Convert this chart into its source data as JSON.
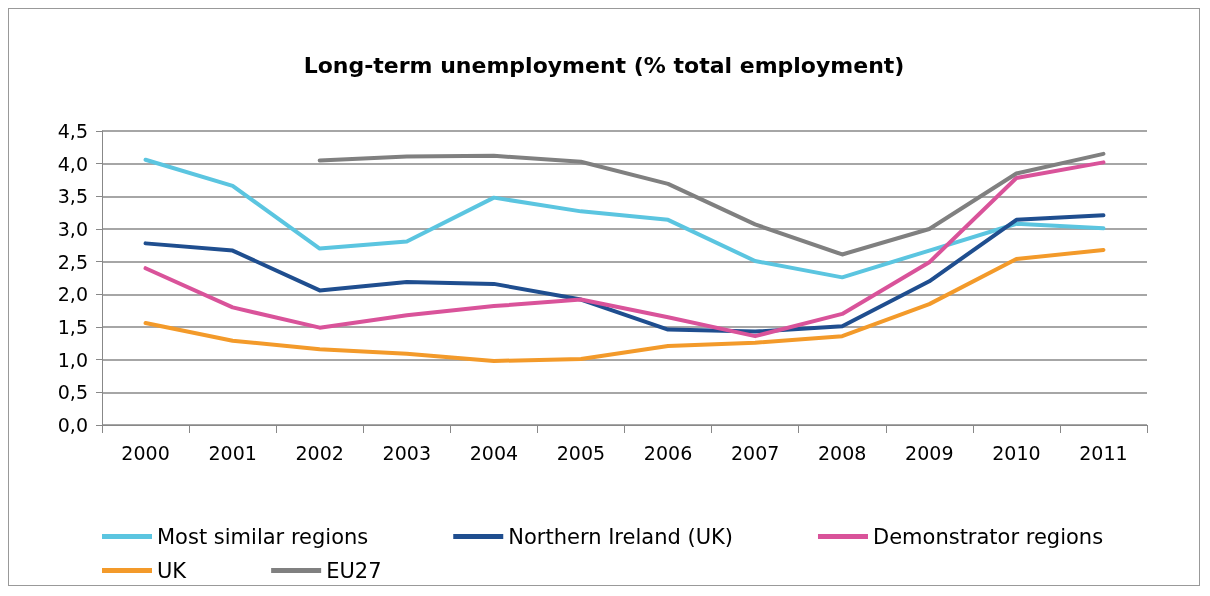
{
  "chart_data": {
    "type": "line",
    "title": "Long-term unemployment (% total employment)",
    "categories": [
      "2000",
      "2001",
      "2002",
      "2003",
      "2004",
      "2005",
      "2006",
      "2007",
      "2008",
      "2009",
      "2010",
      "2011"
    ],
    "series": [
      {
        "name": "Most similar regions",
        "color": "#5bc5e0",
        "values": [
          4.06,
          3.66,
          2.7,
          2.81,
          3.48,
          3.27,
          3.14,
          2.51,
          2.26,
          2.67,
          3.08,
          3.01
        ]
      },
      {
        "name": "Northern Ireland (UK)",
        "color": "#1f4e8f",
        "values": [
          2.78,
          2.67,
          2.06,
          2.19,
          2.16,
          1.92,
          1.46,
          1.43,
          1.51,
          2.2,
          3.14,
          3.21
        ]
      },
      {
        "name": "Demonstrator regions",
        "color": "#d9539a",
        "values": [
          2.4,
          1.8,
          1.49,
          1.68,
          1.82,
          1.92,
          1.65,
          1.36,
          1.7,
          2.49,
          3.78,
          4.02
        ]
      },
      {
        "name": "UK",
        "color": "#f39a2a",
        "values": [
          1.56,
          1.29,
          1.16,
          1.09,
          0.98,
          1.01,
          1.21,
          1.26,
          1.36,
          1.85,
          2.54,
          2.68
        ]
      },
      {
        "name": "EU27",
        "color": "#808080",
        "values": [
          null,
          null,
          4.05,
          4.11,
          4.12,
          4.03,
          3.69,
          3.07,
          2.61,
          3.0,
          3.85,
          4.15
        ]
      }
    ],
    "ylim": [
      0,
      4.5
    ],
    "yticks": [
      {
        "value": 0,
        "label": "0,0"
      },
      {
        "value": 0.5,
        "label": "0,5"
      },
      {
        "value": 1,
        "label": "1,0"
      },
      {
        "value": 1.5,
        "label": "1,5"
      },
      {
        "value": 2,
        "label": "2,0"
      },
      {
        "value": 2.5,
        "label": "2,5"
      },
      {
        "value": 3,
        "label": "3,0"
      },
      {
        "value": 3.5,
        "label": "3,5"
      },
      {
        "value": 4,
        "label": "4,0"
      },
      {
        "value": 4.5,
        "label": "4,5"
      }
    ],
    "grid": "y",
    "legend": "bottom",
    "marker": "none",
    "line_style": "solid"
  }
}
